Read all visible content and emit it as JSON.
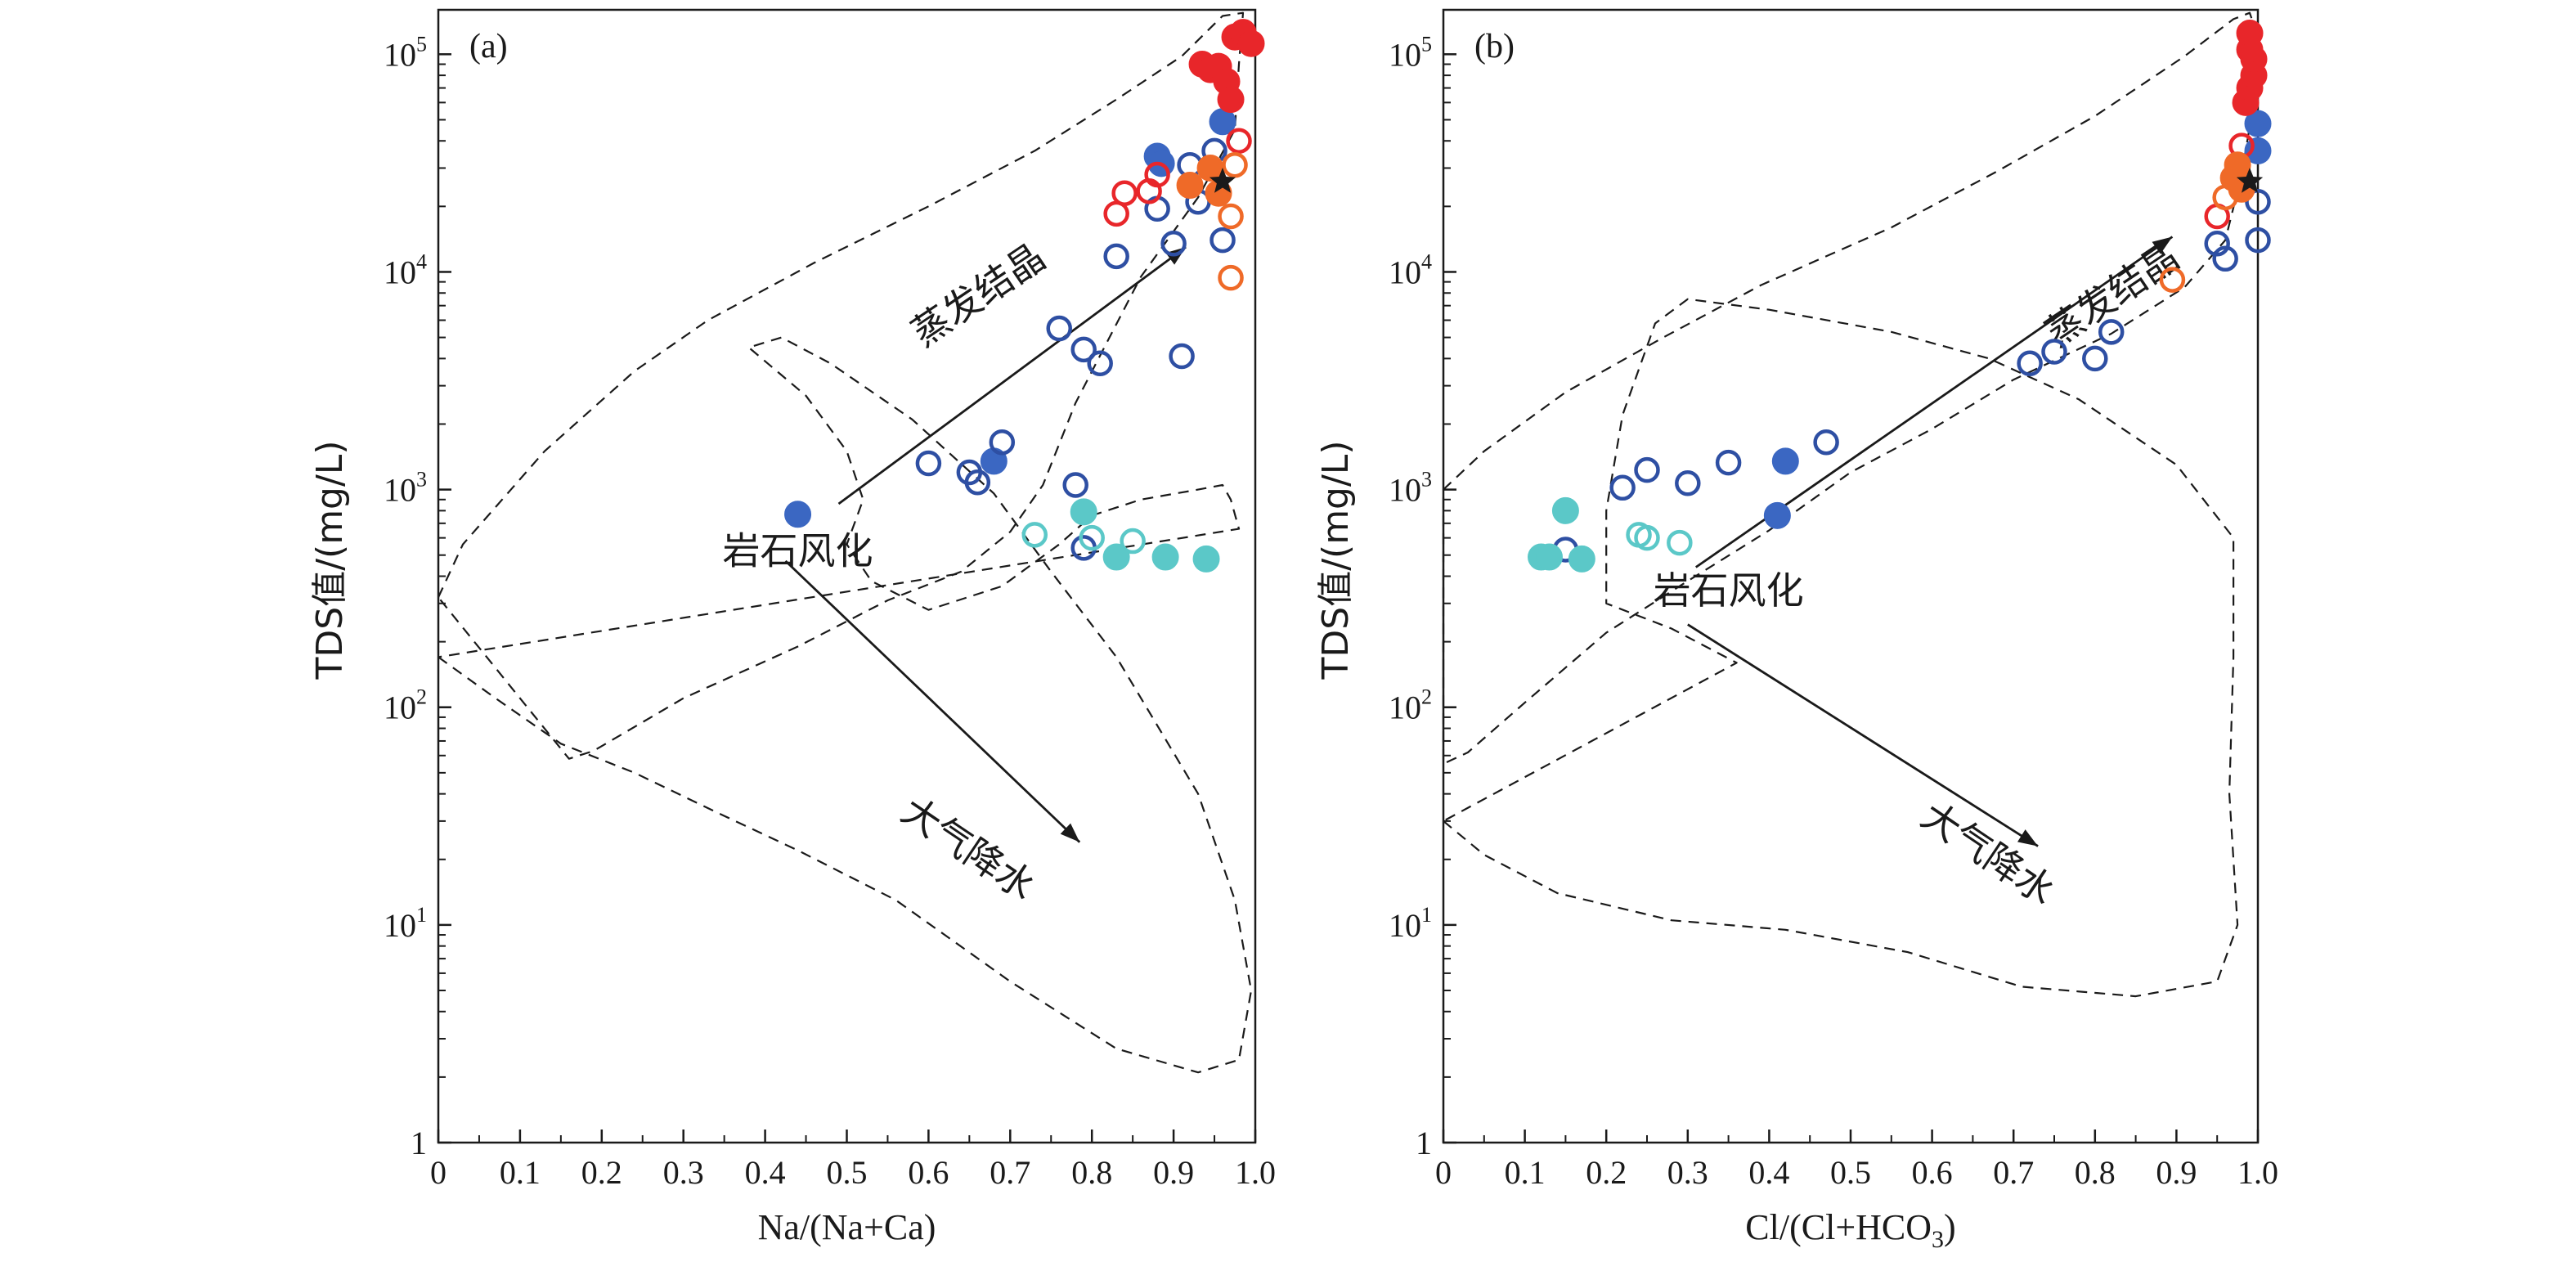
{
  "figure": {
    "y_label_prefix": "TDS值/(mg/L)",
    "ylim": [
      1,
      160000
    ],
    "y_scale": "log",
    "y_tick_labels": [
      {
        "value": 1,
        "base": "1",
        "exp": ""
      },
      {
        "value": 10,
        "base": "10",
        "exp": "1"
      },
      {
        "value": 100,
        "base": "10",
        "exp": "2"
      },
      {
        "value": 1000,
        "base": "10",
        "exp": "3"
      },
      {
        "value": 10000,
        "base": "10",
        "exp": "4"
      },
      {
        "value": 100000,
        "base": "10",
        "exp": "5"
      }
    ],
    "x_tick_labels": [
      "0",
      "0.1",
      "0.2",
      "0.3",
      "0.4",
      "0.5",
      "0.6",
      "0.7",
      "0.8",
      "0.9",
      "1.0"
    ],
    "xlim": [
      0,
      1
    ],
    "colors": {
      "deep_blue": "#2e4fa3",
      "blue_fill": "#3b67c2",
      "cyan": "#5bc8c8",
      "red": "#e8262a",
      "orange": "#ef6a28",
      "star": "#1a1a1a",
      "envelope": "#1a1a1a"
    },
    "boomerang_labels": {
      "evaporation": "蒸发结晶",
      "rock": "岩石风化",
      "precip": "大气降水"
    }
  },
  "chart_data": [
    {
      "type": "scatter",
      "panel_label": "(a)",
      "xlabel": "Na/(Na+Ca)",
      "ylabel": "TDS值/(mg/L)",
      "points": [
        {
          "x": 0.44,
          "y": 770,
          "color": "blue_fill",
          "filled": true
        },
        {
          "x": 0.6,
          "y": 1320,
          "color": "deep_blue",
          "filled": false
        },
        {
          "x": 0.65,
          "y": 1200,
          "color": "deep_blue",
          "filled": false
        },
        {
          "x": 0.66,
          "y": 1080,
          "color": "deep_blue",
          "filled": false
        },
        {
          "x": 0.68,
          "y": 1350,
          "color": "blue_fill",
          "filled": true
        },
        {
          "x": 0.69,
          "y": 1650,
          "color": "deep_blue",
          "filled": false
        },
        {
          "x": 0.76,
          "y": 5500,
          "color": "deep_blue",
          "filled": false
        },
        {
          "x": 0.79,
          "y": 4400,
          "color": "deep_blue",
          "filled": false
        },
        {
          "x": 0.81,
          "y": 3800,
          "color": "deep_blue",
          "filled": false
        },
        {
          "x": 0.83,
          "y": 11800,
          "color": "deep_blue",
          "filled": false
        },
        {
          "x": 0.88,
          "y": 19500,
          "color": "deep_blue",
          "filled": false
        },
        {
          "x": 0.9,
          "y": 13500,
          "color": "deep_blue",
          "filled": false
        },
        {
          "x": 0.91,
          "y": 4100,
          "color": "deep_blue",
          "filled": false
        },
        {
          "x": 0.92,
          "y": 31000,
          "color": "deep_blue",
          "filled": false
        },
        {
          "x": 0.93,
          "y": 21000,
          "color": "deep_blue",
          "filled": false
        },
        {
          "x": 0.95,
          "y": 36000,
          "color": "deep_blue",
          "filled": false
        },
        {
          "x": 0.96,
          "y": 14000,
          "color": "deep_blue",
          "filled": false
        },
        {
          "x": 0.78,
          "y": 1050,
          "color": "deep_blue",
          "filled": false
        },
        {
          "x": 0.79,
          "y": 540,
          "color": "deep_blue",
          "filled": false
        },
        {
          "x": 0.88,
          "y": 34000,
          "color": "blue_fill",
          "filled": true
        },
        {
          "x": 0.885,
          "y": 31500,
          "color": "blue_fill",
          "filled": true
        },
        {
          "x": 0.96,
          "y": 49000,
          "color": "blue_fill",
          "filled": true
        },
        {
          "x": 0.73,
          "y": 620,
          "color": "cyan",
          "filled": false
        },
        {
          "x": 0.8,
          "y": 600,
          "color": "cyan",
          "filled": false
        },
        {
          "x": 0.85,
          "y": 580,
          "color": "cyan",
          "filled": false
        },
        {
          "x": 0.79,
          "y": 790,
          "color": "cyan",
          "filled": true
        },
        {
          "x": 0.83,
          "y": 490,
          "color": "cyan",
          "filled": true
        },
        {
          "x": 0.89,
          "y": 490,
          "color": "cyan",
          "filled": true
        },
        {
          "x": 0.94,
          "y": 480,
          "color": "cyan",
          "filled": true
        },
        {
          "x": 0.83,
          "y": 18500,
          "color": "red",
          "filled": false
        },
        {
          "x": 0.84,
          "y": 23000,
          "color": "red",
          "filled": false
        },
        {
          "x": 0.87,
          "y": 23500,
          "color": "red",
          "filled": false
        },
        {
          "x": 0.88,
          "y": 28000,
          "color": "red",
          "filled": false
        },
        {
          "x": 0.98,
          "y": 40000,
          "color": "red",
          "filled": false
        },
        {
          "x": 0.935,
          "y": 90000,
          "color": "red",
          "filled": true
        },
        {
          "x": 0.945,
          "y": 85000,
          "color": "red",
          "filled": true
        },
        {
          "x": 0.955,
          "y": 88000,
          "color": "red",
          "filled": true
        },
        {
          "x": 0.965,
          "y": 75000,
          "color": "red",
          "filled": true
        },
        {
          "x": 0.97,
          "y": 62000,
          "color": "red",
          "filled": true
        },
        {
          "x": 0.975,
          "y": 120000,
          "color": "red",
          "filled": true
        },
        {
          "x": 0.985,
          "y": 126000,
          "color": "red",
          "filled": true
        },
        {
          "x": 0.995,
          "y": 112000,
          "color": "red",
          "filled": true
        },
        {
          "x": 0.97,
          "y": 18000,
          "color": "orange",
          "filled": false
        },
        {
          "x": 0.97,
          "y": 9400,
          "color": "orange",
          "filled": false
        },
        {
          "x": 0.975,
          "y": 31000,
          "color": "orange",
          "filled": false
        },
        {
          "x": 0.92,
          "y": 25000,
          "color": "orange",
          "filled": true
        },
        {
          "x": 0.945,
          "y": 30000,
          "color": "orange",
          "filled": true
        },
        {
          "x": 0.955,
          "y": 23000,
          "color": "orange",
          "filled": true
        }
      ],
      "star": {
        "x": 0.96,
        "y": 26000
      },
      "arrows": [
        {
          "from": [
            0.49,
            860
          ],
          "to": [
            0.915,
            13000
          ]
        },
        {
          "from": [
            0.425,
            470
          ],
          "to": [
            0.785,
            24
          ]
        }
      ],
      "label_positions": {
        "evaporation": [
          0.67,
          7000
        ],
        "rock": [
          0.44,
          455
        ],
        "precip": [
          0.64,
          20
        ]
      },
      "envelopes": [
        [
          [
            0,
            320
          ],
          [
            0.03,
            560
          ],
          [
            0.13,
            1500
          ],
          [
            0.24,
            3500
          ],
          [
            0.33,
            6000
          ],
          [
            0.46,
            11000
          ],
          [
            0.6,
            20000
          ],
          [
            0.73,
            36000
          ],
          [
            0.83,
            62000
          ],
          [
            0.91,
            98000
          ],
          [
            0.96,
            150000
          ],
          [
            0.985,
            155000
          ],
          [
            0.98,
            90000
          ],
          [
            0.975,
            45000
          ],
          [
            0.93,
            22000
          ],
          [
            0.86,
            9500
          ],
          [
            0.78,
            2500
          ],
          [
            0.74,
            1050
          ],
          [
            0.7,
            640
          ],
          [
            0.64,
            420
          ],
          [
            0.55,
            310
          ],
          [
            0.44,
            190
          ],
          [
            0.3,
            110
          ],
          [
            0.19,
            63
          ],
          [
            0.16,
            58
          ]
        ],
        [
          [
            0,
            170
          ],
          [
            0.07,
            110
          ],
          [
            0.15,
            68
          ],
          [
            0.24,
            50
          ],
          [
            0.34,
            33
          ],
          [
            0.44,
            22
          ],
          [
            0.56,
            13
          ],
          [
            0.7,
            5.5
          ],
          [
            0.83,
            2.7
          ],
          [
            0.93,
            2.1
          ],
          [
            0.98,
            2.4
          ],
          [
            0.995,
            5
          ],
          [
            0.975,
            13
          ],
          [
            0.93,
            40
          ],
          [
            0.83,
            170
          ],
          [
            0.75,
            420
          ],
          [
            0.68,
            960
          ],
          [
            0.58,
            2100
          ],
          [
            0.48,
            3800
          ],
          [
            0.42,
            5000
          ],
          [
            0.38,
            4500
          ],
          [
            0.45,
            2700
          ],
          [
            0.5,
            1500
          ],
          [
            0.52,
            900
          ],
          [
            0.5,
            560
          ],
          [
            0.53,
            380
          ],
          [
            0.6,
            280
          ],
          [
            0.69,
            360
          ],
          [
            0.76,
            560
          ],
          [
            0.8,
            760
          ],
          [
            0.86,
            900
          ],
          [
            0.93,
            1000
          ],
          [
            0.96,
            1050
          ],
          [
            0.97,
            900
          ],
          [
            0.98,
            660
          ]
        ]
      ]
    },
    {
      "type": "scatter",
      "panel_label": "(b)",
      "xlabel_base": "Cl/(Cl+HCO",
      "xlabel_sub": "3",
      "xlabel_close": ")",
      "ylabel": "TDS值/(mg/L)",
      "points": [
        {
          "x": 0.15,
          "y": 530,
          "color": "deep_blue",
          "filled": false
        },
        {
          "x": 0.22,
          "y": 1020,
          "color": "deep_blue",
          "filled": false
        },
        {
          "x": 0.25,
          "y": 1230,
          "color": "deep_blue",
          "filled": false
        },
        {
          "x": 0.3,
          "y": 1070,
          "color": "deep_blue",
          "filled": false
        },
        {
          "x": 0.35,
          "y": 1330,
          "color": "deep_blue",
          "filled": false
        },
        {
          "x": 0.47,
          "y": 1650,
          "color": "deep_blue",
          "filled": false
        },
        {
          "x": 0.72,
          "y": 3800,
          "color": "deep_blue",
          "filled": false
        },
        {
          "x": 0.75,
          "y": 4300,
          "color": "deep_blue",
          "filled": false
        },
        {
          "x": 0.8,
          "y": 4000,
          "color": "deep_blue",
          "filled": false
        },
        {
          "x": 0.82,
          "y": 5300,
          "color": "deep_blue",
          "filled": false
        },
        {
          "x": 0.96,
          "y": 11500,
          "color": "deep_blue",
          "filled": false
        },
        {
          "x": 0.95,
          "y": 13500,
          "color": "deep_blue",
          "filled": false
        },
        {
          "x": 1.0,
          "y": 14000,
          "color": "deep_blue",
          "filled": false
        },
        {
          "x": 1.0,
          "y": 21000,
          "color": "deep_blue",
          "filled": false
        },
        {
          "x": 0.41,
          "y": 760,
          "color": "blue_fill",
          "filled": true
        },
        {
          "x": 0.42,
          "y": 1350,
          "color": "blue_fill",
          "filled": true
        },
        {
          "x": 1.0,
          "y": 48000,
          "color": "blue_fill",
          "filled": true
        },
        {
          "x": 1.0,
          "y": 36000,
          "color": "blue_fill",
          "filled": true
        },
        {
          "x": 0.24,
          "y": 620,
          "color": "cyan",
          "filled": false
        },
        {
          "x": 0.25,
          "y": 600,
          "color": "cyan",
          "filled": false
        },
        {
          "x": 0.29,
          "y": 570,
          "color": "cyan",
          "filled": false
        },
        {
          "x": 0.12,
          "y": 490,
          "color": "cyan",
          "filled": true
        },
        {
          "x": 0.13,
          "y": 490,
          "color": "cyan",
          "filled": true
        },
        {
          "x": 0.15,
          "y": 800,
          "color": "cyan",
          "filled": true
        },
        {
          "x": 0.17,
          "y": 480,
          "color": "cyan",
          "filled": true
        },
        {
          "x": 0.95,
          "y": 18000,
          "color": "red",
          "filled": false
        },
        {
          "x": 0.98,
          "y": 38000,
          "color": "red",
          "filled": false
        },
        {
          "x": 0.985,
          "y": 60000,
          "color": "red",
          "filled": true
        },
        {
          "x": 0.99,
          "y": 70000,
          "color": "red",
          "filled": true
        },
        {
          "x": 0.995,
          "y": 80000,
          "color": "red",
          "filled": true
        },
        {
          "x": 0.995,
          "y": 95000,
          "color": "red",
          "filled": true
        },
        {
          "x": 0.99,
          "y": 105000,
          "color": "red",
          "filled": true
        },
        {
          "x": 0.99,
          "y": 125000,
          "color": "red",
          "filled": true
        },
        {
          "x": 0.895,
          "y": 9200,
          "color": "orange",
          "filled": false
        },
        {
          "x": 0.96,
          "y": 22000,
          "color": "orange",
          "filled": false
        },
        {
          "x": 0.97,
          "y": 27000,
          "color": "orange",
          "filled": true
        },
        {
          "x": 0.975,
          "y": 31000,
          "color": "orange",
          "filled": true
        },
        {
          "x": 0.98,
          "y": 24000,
          "color": "orange",
          "filled": true
        }
      ],
      "star": {
        "x": 0.99,
        "y": 26000
      },
      "arrows": [
        {
          "from": [
            0.31,
            440
          ],
          "to": [
            0.895,
            14500
          ]
        },
        {
          "from": [
            0.3,
            240
          ],
          "to": [
            0.73,
            23
          ]
        }
      ],
      "label_positions": {
        "evaporation": [
          0.83,
          7000
        ],
        "rock": [
          0.35,
          300
        ],
        "precip": [
          0.66,
          19
        ]
      },
      "envelopes": [
        [
          [
            0,
            1000
          ],
          [
            0.05,
            1500
          ],
          [
            0.15,
            2800
          ],
          [
            0.27,
            5000
          ],
          [
            0.39,
            8700
          ],
          [
            0.55,
            16000
          ],
          [
            0.68,
            29000
          ],
          [
            0.8,
            52000
          ],
          [
            0.91,
            98000
          ],
          [
            0.97,
            145000
          ],
          [
            0.99,
            155000
          ],
          [
            1.0,
            120000
          ],
          [
            0.995,
            60000
          ],
          [
            0.98,
            28000
          ],
          [
            0.96,
            14000
          ],
          [
            0.91,
            8500
          ],
          [
            0.82,
            5200
          ],
          [
            0.7,
            3200
          ],
          [
            0.6,
            1900
          ],
          [
            0.5,
            1200
          ],
          [
            0.4,
            650
          ],
          [
            0.3,
            380
          ],
          [
            0.2,
            220
          ],
          [
            0.1,
            105
          ],
          [
            0.03,
            62
          ],
          [
            0,
            55
          ]
        ],
        [
          [
            0,
            30
          ],
          [
            0.05,
            21
          ],
          [
            0.14,
            14
          ],
          [
            0.28,
            10.5
          ],
          [
            0.42,
            9.5
          ],
          [
            0.57,
            7.5
          ],
          [
            0.71,
            5.2
          ],
          [
            0.85,
            4.7
          ],
          [
            0.95,
            5.5
          ],
          [
            0.975,
            10
          ],
          [
            0.965,
            40
          ],
          [
            0.97,
            170
          ],
          [
            0.97,
            600
          ],
          [
            0.9,
            1300
          ],
          [
            0.78,
            2600
          ],
          [
            0.67,
            4000
          ],
          [
            0.55,
            5300
          ],
          [
            0.4,
            6700
          ],
          [
            0.3,
            7500
          ],
          [
            0.26,
            5800
          ],
          [
            0.22,
            2200
          ],
          [
            0.2,
            800
          ],
          [
            0.2,
            370
          ],
          [
            0.2,
            300
          ],
          [
            0.28,
            230
          ],
          [
            0.36,
            160
          ]
        ]
      ]
    }
  ]
}
